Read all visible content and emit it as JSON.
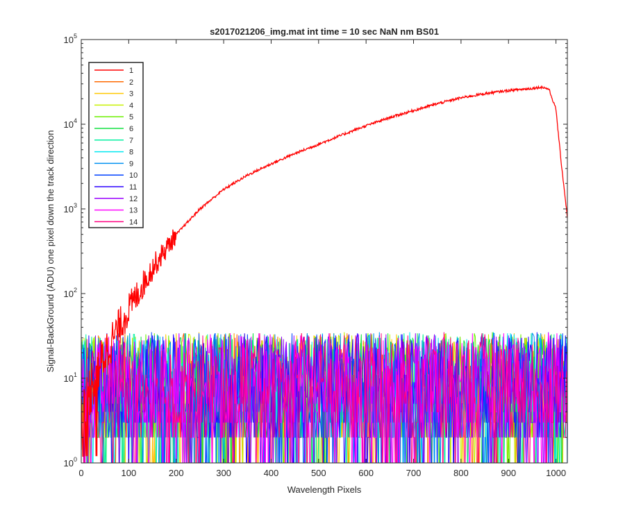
{
  "chart_data": {
    "type": "line",
    "title": "s2017021206_img.mat int time = 10 sec  NaN nm BS01",
    "xlabel": "Wavelength Pixels",
    "ylabel": "Signal-BackGround (ADU) one pixel down the track direction",
    "xlim": [
      0,
      1024
    ],
    "ylim": [
      1,
      100000
    ],
    "yscale": "log",
    "xticks": [
      "0",
      "100",
      "200",
      "300",
      "400",
      "500",
      "600",
      "700",
      "800",
      "900",
      "1000"
    ],
    "yticks": [
      {
        "base": "10",
        "exp": "0"
      },
      {
        "base": "10",
        "exp": "1"
      },
      {
        "base": "10",
        "exp": "2"
      },
      {
        "base": "10",
        "exp": "3"
      },
      {
        "base": "10",
        "exp": "4"
      },
      {
        "base": "10",
        "exp": "5"
      }
    ],
    "grid": false,
    "legend_position": "top-left",
    "noise_level": 10,
    "series": [
      {
        "name": "1",
        "color": "#ff0000",
        "x": [
          0,
          20,
          40,
          60,
          80,
          100,
          150,
          200,
          250,
          300,
          350,
          400,
          450,
          500,
          550,
          600,
          650,
          700,
          750,
          800,
          850,
          900,
          950,
          970,
          985,
          1000,
          1010,
          1024
        ],
        "y": [
          3,
          8,
          15,
          25,
          40,
          65,
          200,
          500,
          1000,
          1700,
          2500,
          3400,
          4500,
          5800,
          7500,
          9600,
          12000,
          14500,
          17500,
          20500,
          23000,
          25000,
          26500,
          27500,
          26000,
          15000,
          4000,
          800
        ]
      },
      {
        "name": "2",
        "color": "#ff6a00"
      },
      {
        "name": "3",
        "color": "#ffc800"
      },
      {
        "name": "4",
        "color": "#c8f000"
      },
      {
        "name": "5",
        "color": "#6cf000"
      },
      {
        "name": "6",
        "color": "#10e040"
      },
      {
        "name": "7",
        "color": "#00f0a0"
      },
      {
        "name": "8",
        "color": "#00e8f0"
      },
      {
        "name": "9",
        "color": "#0090f0"
      },
      {
        "name": "10",
        "color": "#0040ff"
      },
      {
        "name": "11",
        "color": "#2a00ff"
      },
      {
        "name": "12",
        "color": "#9a00ff"
      },
      {
        "name": "13",
        "color": "#ff00ff"
      },
      {
        "name": "14",
        "color": "#ff0080"
      }
    ]
  }
}
